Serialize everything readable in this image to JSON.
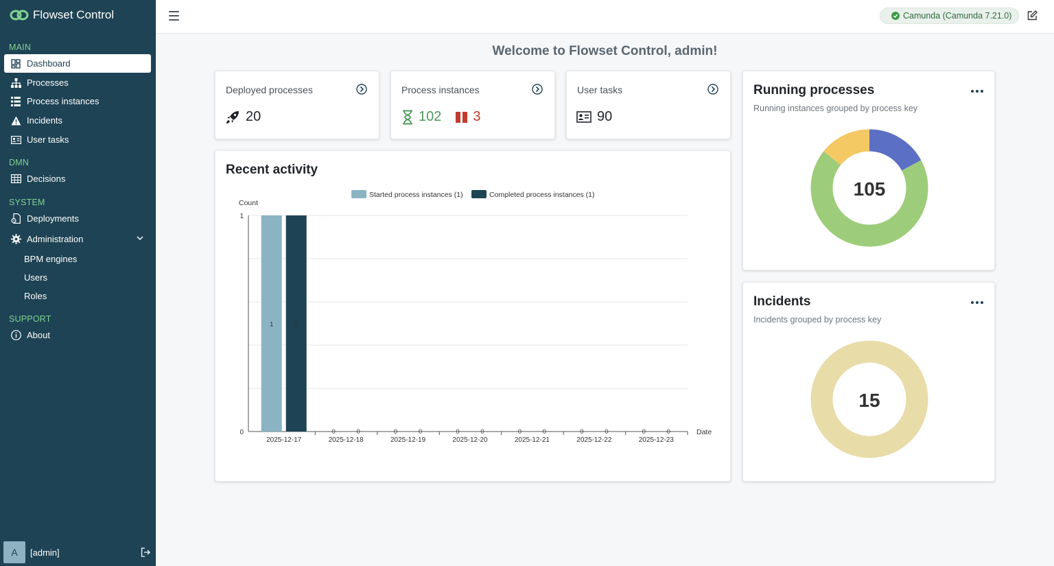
{
  "app": {
    "name": "Flowset Control"
  },
  "sidebar": {
    "sections": {
      "main": "MAIN",
      "dmn": "DMN",
      "system": "SYSTEM",
      "support": "SUPPORT"
    },
    "items": [
      {
        "label": "Dashboard",
        "active": true
      },
      {
        "label": "Processes"
      },
      {
        "label": "Process instances"
      },
      {
        "label": "Incidents"
      },
      {
        "label": "User tasks"
      },
      {
        "label": "Decisions"
      },
      {
        "label": "Deployments"
      },
      {
        "label": "Administration"
      }
    ],
    "admin_sub": [
      "BPM engines",
      "Users",
      "Roles"
    ],
    "about": "About",
    "user": {
      "avatar": "A",
      "name": "[admin]"
    }
  },
  "header": {
    "engine": "Camunda (Camunda 7.21.0)"
  },
  "welcome": "Welcome to Flowset Control, admin!",
  "stats": {
    "deployed": {
      "title": "Deployed processes",
      "value": "20"
    },
    "instances": {
      "title": "Process instances",
      "running": "102",
      "suspended": "3"
    },
    "tasks": {
      "title": "User tasks",
      "value": "90"
    }
  },
  "colors": {
    "sidebar": "#1e4354",
    "accent_green": "#4f9a5c",
    "danger": "#c23b2e"
  },
  "recent": {
    "title": "Recent activity",
    "chart_data": {
      "type": "bar",
      "xlabel": "Date",
      "ylabel": "Count",
      "ylim": [
        0,
        1
      ],
      "categories": [
        "2025-12-17",
        "2025-12-18",
        "2025-12-19",
        "2025-12-20",
        "2025-12-21",
        "2025-12-22",
        "2025-12-23"
      ],
      "series": [
        {
          "name": "Started process instances (1)",
          "values": [
            1,
            0,
            0,
            0,
            0,
            0,
            0
          ],
          "color": "#8ab4c3"
        },
        {
          "name": "Completed process instances (1)",
          "values": [
            1,
            0,
            0,
            0,
            0,
            0,
            0
          ],
          "color": "#1e4354"
        }
      ]
    }
  },
  "running": {
    "title": "Running processes",
    "subtitle": "Running instances grouped by process key",
    "total": "105",
    "chart_data": {
      "type": "pie",
      "values": [
        18,
        72,
        15
      ],
      "colors": [
        "#5b6fc4",
        "#9dcd7a",
        "#f4c863"
      ]
    }
  },
  "incidents": {
    "title": "Incidents",
    "subtitle": "Incidents grouped by process key",
    "total": "15",
    "chart_data": {
      "type": "pie",
      "values": [
        15
      ],
      "colors": [
        "#e8dca9"
      ]
    }
  }
}
